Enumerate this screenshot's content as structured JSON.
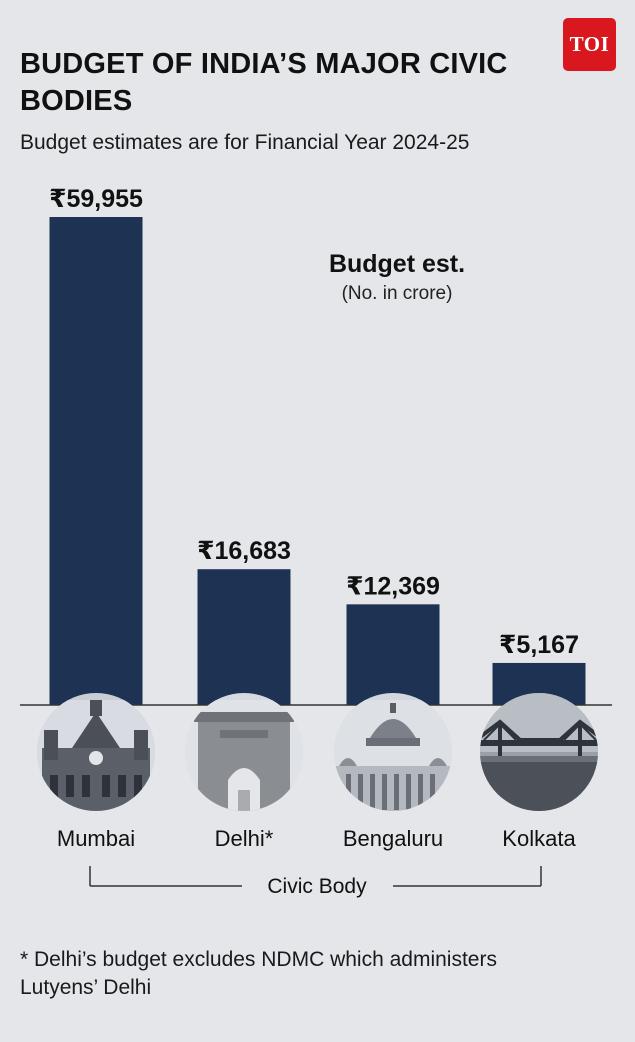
{
  "header": {
    "title": "BUDGET OF INDIA’S MAJOR CIVIC BODIES",
    "subtitle": "Budget estimates are for Financial Year 2024-25",
    "logo_text": "TOI"
  },
  "legend": {
    "title": "Budget est.",
    "unit": "(No. in crore)"
  },
  "footnote": "* Delhi’s budget excludes NDMC which administers Lutyens’ Delhi",
  "colors": {
    "bar": "#1e3253",
    "background": "#e4e6ea",
    "logo": "#d8181e"
  },
  "chart_data": {
    "type": "bar",
    "title": "BUDGET OF INDIA’S MAJOR CIVIC BODIES",
    "subtitle": "Budget estimates are for Financial Year 2024-25",
    "xlabel": "Civic Body",
    "ylabel": "Budget est. (No. in crore)",
    "categories": [
      "Mumbai",
      "Delhi*",
      "Bengaluru",
      "Kolkata"
    ],
    "values": [
      59955,
      16683,
      12369,
      5167
    ],
    "value_labels": [
      "₹59,955",
      "₹16,683",
      "₹12,369",
      "₹5,167"
    ],
    "icons": [
      "mumbai-cst-building-icon",
      "india-gate-icon",
      "vidhana-soudha-icon",
      "howrah-bridge-icon"
    ],
    "ylim": [
      0,
      59955
    ],
    "grid": false
  }
}
